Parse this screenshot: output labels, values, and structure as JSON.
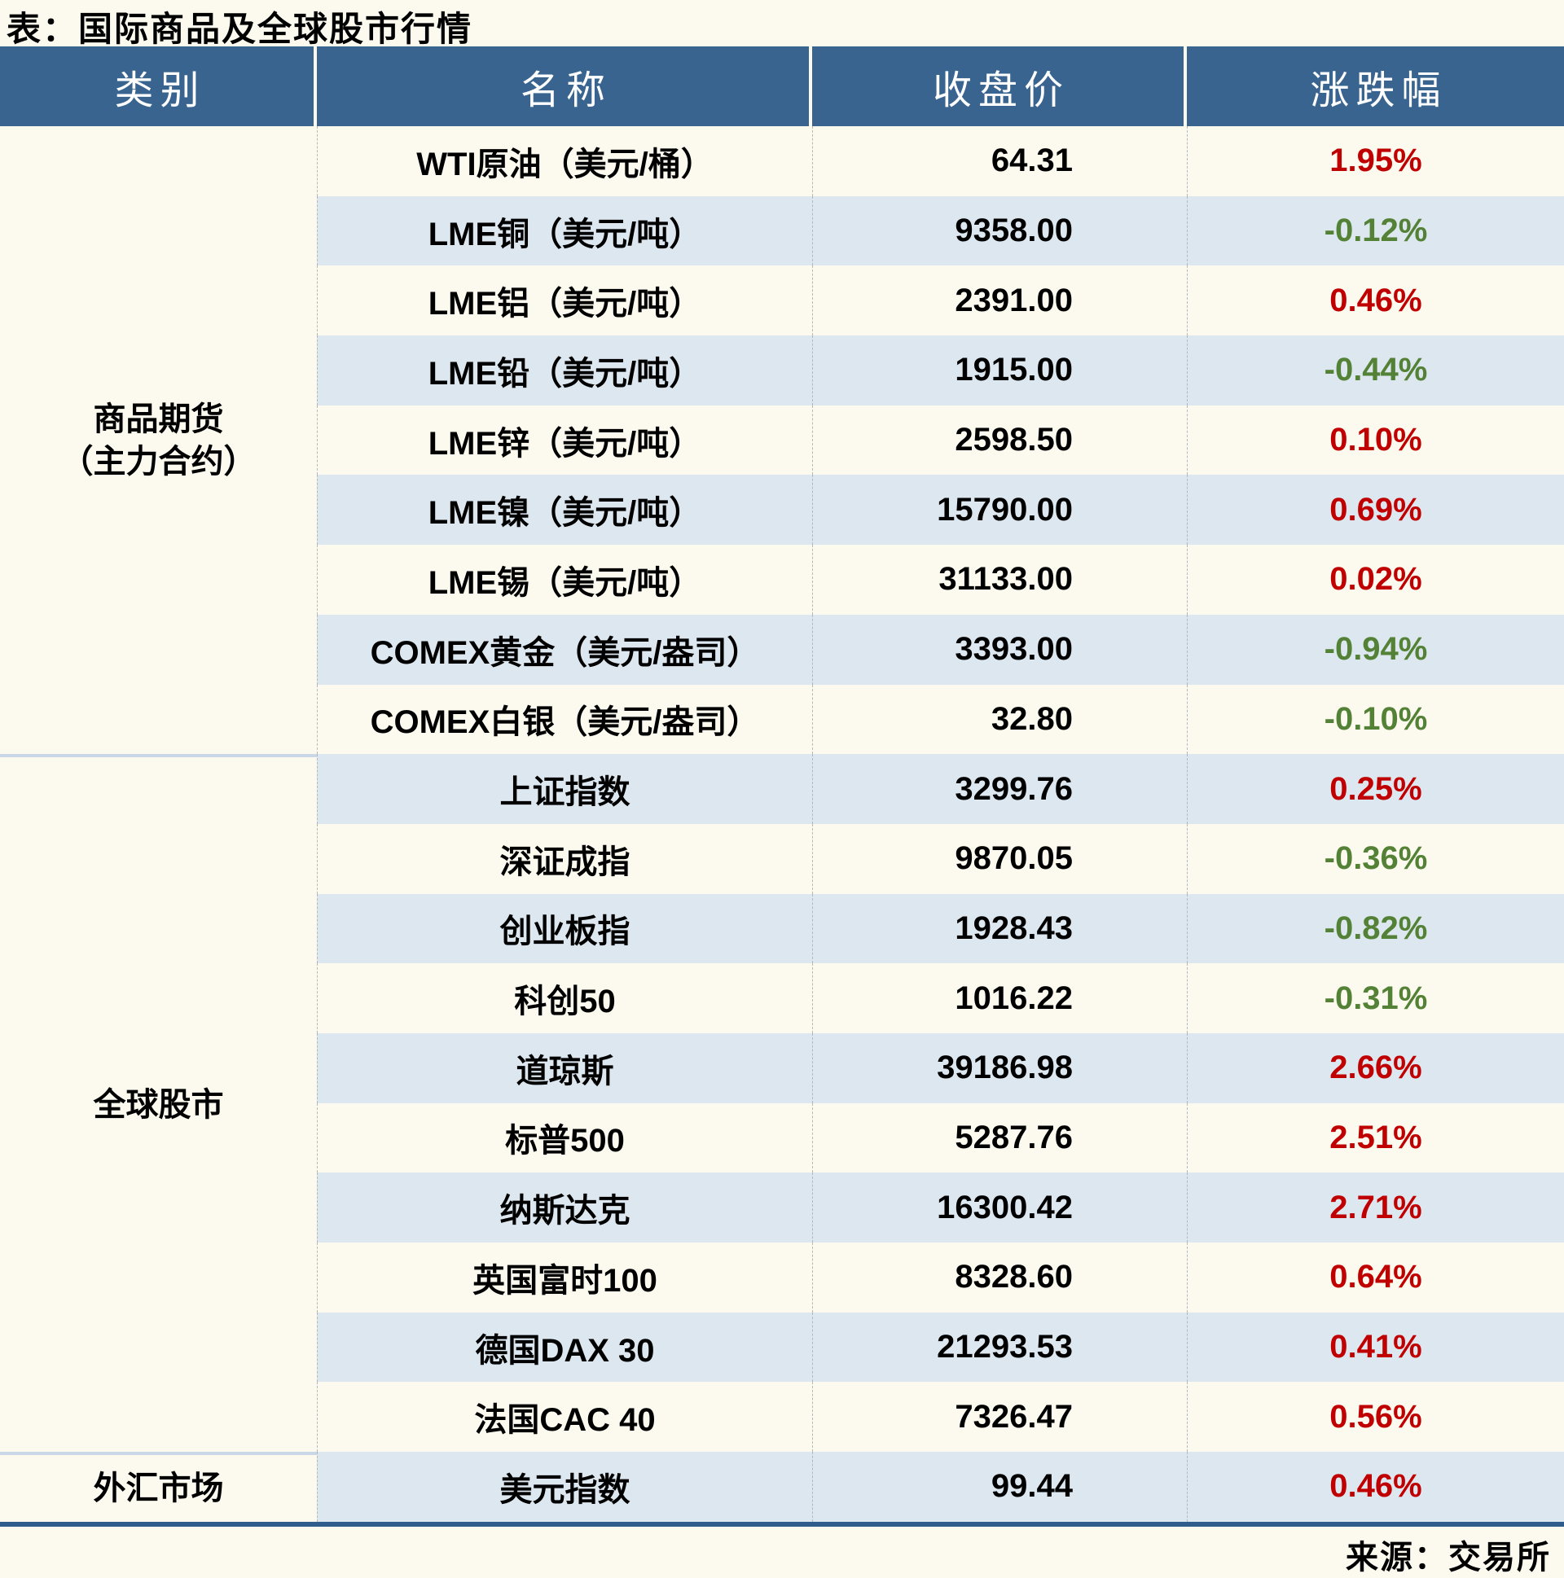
{
  "title": "表：国际商品及全球股市行情",
  "footer": {
    "source_label": "来源：交易所"
  },
  "colors": {
    "page_bg": "#fcfaef",
    "header_bg": "#38648f",
    "header_text": "#ffffff",
    "stripe_blue": "#dde7f0",
    "up_red": "#c00000",
    "down_green": "#538135",
    "section_divider": "#c9d7e6",
    "bottom_border": "#2f5c8a"
  },
  "table": {
    "headers": [
      "类别",
      "名称",
      "收盘价",
      "涨跌幅"
    ],
    "sections": [
      {
        "category_lines": [
          "商品期货",
          "（主力合约）"
        ],
        "rows": [
          {
            "name": "WTI原油（美元/桶）",
            "close": "64.31",
            "change": "1.95%"
          },
          {
            "name": "LME铜（美元/吨）",
            "close": "9358.00",
            "change": "-0.12%"
          },
          {
            "name": "LME铝（美元/吨）",
            "close": "2391.00",
            "change": "0.46%"
          },
          {
            "name": "LME铅（美元/吨）",
            "close": "1915.00",
            "change": "-0.44%"
          },
          {
            "name": "LME锌（美元/吨）",
            "close": "2598.50",
            "change": "0.10%"
          },
          {
            "name": "LME镍（美元/吨）",
            "close": "15790.00",
            "change": "0.69%"
          },
          {
            "name": "LME锡（美元/吨）",
            "close": "31133.00",
            "change": "0.02%"
          },
          {
            "name": "COMEX黄金（美元/盎司）",
            "close": "3393.00",
            "change": "-0.94%"
          },
          {
            "name": "COMEX白银（美元/盎司）",
            "close": "32.80",
            "change": "-0.10%"
          }
        ]
      },
      {
        "category_lines": [
          "全球股市"
        ],
        "rows": [
          {
            "name": "上证指数",
            "close": "3299.76",
            "change": "0.25%"
          },
          {
            "name": "深证成指",
            "close": "9870.05",
            "change": "-0.36%"
          },
          {
            "name": "创业板指",
            "close": "1928.43",
            "change": "-0.82%"
          },
          {
            "name": "科创50",
            "close": "1016.22",
            "change": "-0.31%"
          },
          {
            "name": "道琼斯",
            "close": "39186.98",
            "change": "2.66%"
          },
          {
            "name": "标普500",
            "close": "5287.76",
            "change": "2.51%"
          },
          {
            "name": "纳斯达克",
            "close": "16300.42",
            "change": "2.71%"
          },
          {
            "name": "英国富时100",
            "close": "8328.60",
            "change": "0.64%"
          },
          {
            "name": "德国DAX 30",
            "close": "21293.53",
            "change": "0.41%"
          },
          {
            "name": "法国CAC 40",
            "close": "7326.47",
            "change": "0.56%"
          }
        ]
      },
      {
        "category_lines": [
          "外汇市场"
        ],
        "rows": [
          {
            "name": "美元指数",
            "close": "99.44",
            "change": "0.46%"
          }
        ]
      }
    ]
  },
  "chart_data": {
    "type": "table",
    "title": "表：国际商品及全球股市行情",
    "source": "来源：交易所",
    "columns": [
      "类别",
      "名称",
      "收盘价",
      "涨跌幅"
    ],
    "rows": [
      {
        "category": "商品期货（主力合约）",
        "name": "WTI原油（美元/桶）",
        "close": 64.31,
        "change_pct": 1.95
      },
      {
        "category": "商品期货（主力合约）",
        "name": "LME铜（美元/吨）",
        "close": 9358.0,
        "change_pct": -0.12
      },
      {
        "category": "商品期货（主力合约）",
        "name": "LME铝（美元/吨）",
        "close": 2391.0,
        "change_pct": 0.46
      },
      {
        "category": "商品期货（主力合约）",
        "name": "LME铅（美元/吨）",
        "close": 1915.0,
        "change_pct": -0.44
      },
      {
        "category": "商品期货（主力合约）",
        "name": "LME锌（美元/吨）",
        "close": 2598.5,
        "change_pct": 0.1
      },
      {
        "category": "商品期货（主力合约）",
        "name": "LME镍（美元/吨）",
        "close": 15790.0,
        "change_pct": 0.69
      },
      {
        "category": "商品期货（主力合约）",
        "name": "LME锡（美元/吨）",
        "close": 31133.0,
        "change_pct": 0.02
      },
      {
        "category": "商品期货（主力合约）",
        "name": "COMEX黄金（美元/盎司）",
        "close": 3393.0,
        "change_pct": -0.94
      },
      {
        "category": "商品期货（主力合约）",
        "name": "COMEX白银（美元/盎司）",
        "close": 32.8,
        "change_pct": -0.1
      },
      {
        "category": "全球股市",
        "name": "上证指数",
        "close": 3299.76,
        "change_pct": 0.25
      },
      {
        "category": "全球股市",
        "name": "深证成指",
        "close": 9870.05,
        "change_pct": -0.36
      },
      {
        "category": "全球股市",
        "name": "创业板指",
        "close": 1928.43,
        "change_pct": -0.82
      },
      {
        "category": "全球股市",
        "name": "科创50",
        "close": 1016.22,
        "change_pct": -0.31
      },
      {
        "category": "全球股市",
        "name": "道琼斯",
        "close": 39186.98,
        "change_pct": 2.66
      },
      {
        "category": "全球股市",
        "name": "标普500",
        "close": 5287.76,
        "change_pct": 2.51
      },
      {
        "category": "全球股市",
        "name": "纳斯达克",
        "close": 16300.42,
        "change_pct": 2.71
      },
      {
        "category": "全球股市",
        "name": "英国富时100",
        "close": 8328.6,
        "change_pct": 0.64
      },
      {
        "category": "全球股市",
        "name": "德国DAX 30",
        "close": 21293.53,
        "change_pct": 0.41
      },
      {
        "category": "全球股市",
        "name": "法国CAC 40",
        "close": 7326.47,
        "change_pct": 0.56
      },
      {
        "category": "外汇市场",
        "name": "美元指数",
        "close": 99.44,
        "change_pct": 0.46
      }
    ],
    "style": {
      "up_color": "#c00000",
      "down_color": "#538135",
      "striped_rows": true
    }
  }
}
